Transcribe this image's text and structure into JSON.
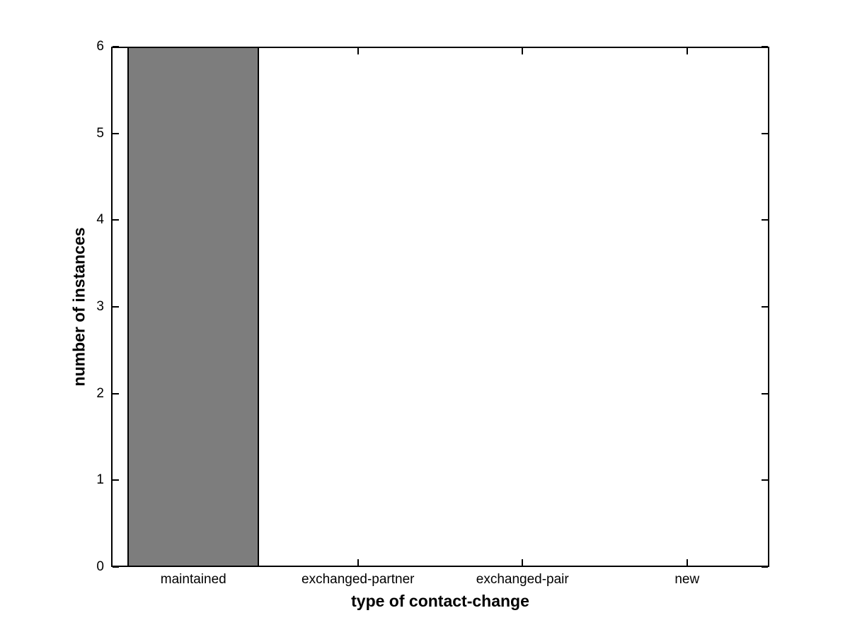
{
  "chart_data": {
    "type": "bar",
    "title": "",
    "xlabel": "type of contact-change",
    "ylabel": "number of instances",
    "categories": [
      "maintained",
      "exchanged-partner",
      "exchanged-pair",
      "new"
    ],
    "values": [
      6,
      0,
      0,
      0
    ],
    "ylim": [
      0,
      6
    ],
    "yticks": [
      0,
      1,
      2,
      3,
      4,
      5,
      6
    ],
    "bar_width_fraction": 0.8,
    "grid": false,
    "legend": null,
    "colors": {
      "bar_fill": "#7d7d7d",
      "bar_edge": "#000000",
      "axis": "#000000",
      "background": "#ffffff",
      "text": "#000000"
    }
  }
}
